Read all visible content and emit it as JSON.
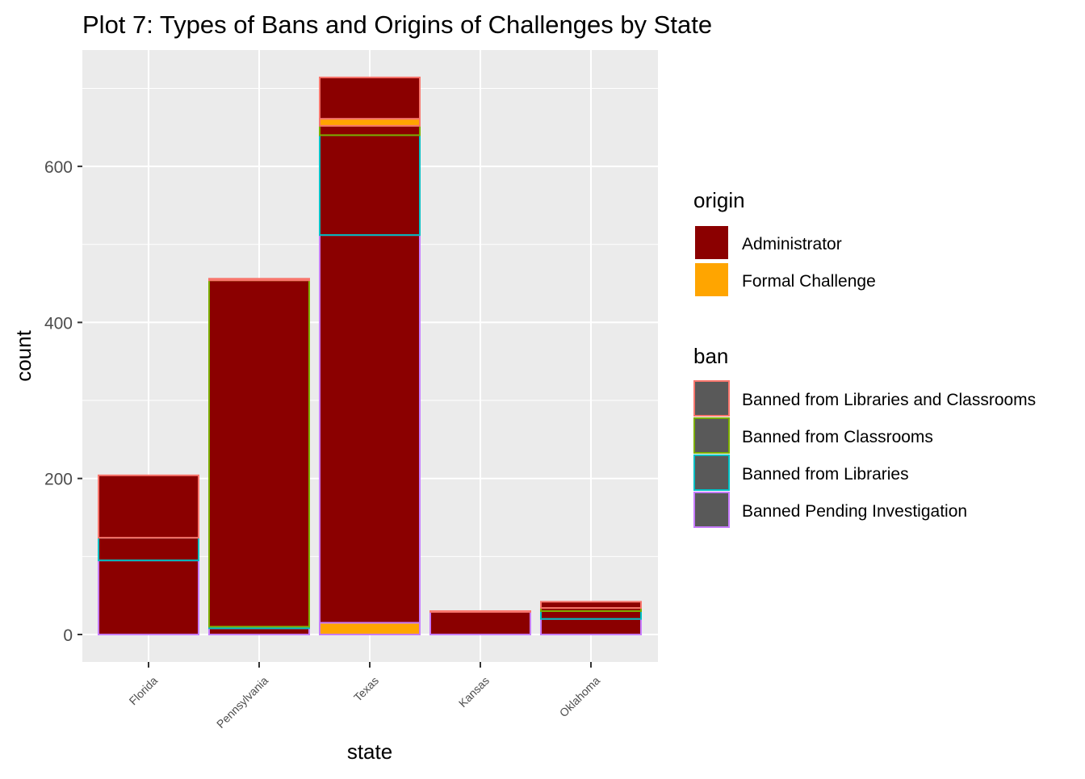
{
  "chart_data": {
    "type": "bar",
    "stacked": true,
    "title": "Plot 7: Types of Bans and Origins of Challenges by State",
    "xlabel": "state",
    "ylabel": "count",
    "ylim": [
      -30,
      740
    ],
    "yticks": [
      0,
      200,
      400,
      600
    ],
    "categories": [
      "Florida",
      "Pennsylvania",
      "Texas",
      "Kansas",
      "Oklahoma"
    ],
    "segments": {
      "Florida": [
        {
          "origin": "Administrator",
          "ban": "Banned Pending Investigation",
          "value": 95
        },
        {
          "origin": "Administrator",
          "ban": "Banned from Libraries",
          "value": 29
        },
        {
          "origin": "Administrator",
          "ban": "Banned from Libraries and Classrooms",
          "value": 80
        }
      ],
      "Pennsylvania": [
        {
          "origin": "Administrator",
          "ban": "Banned Pending Investigation",
          "value": 8
        },
        {
          "origin": "Administrator",
          "ban": "Banned from Libraries",
          "value": 2
        },
        {
          "origin": "Administrator",
          "ban": "Banned from Classrooms",
          "value": 444
        },
        {
          "origin": "Administrator",
          "ban": "Banned from Libraries and Classrooms",
          "value": 2
        }
      ],
      "Texas": [
        {
          "origin": "Formal Challenge",
          "ban": "Banned Pending Investigation",
          "value": 15
        },
        {
          "origin": "Administrator",
          "ban": "Banned Pending Investigation",
          "value": 497
        },
        {
          "origin": "Administrator",
          "ban": "Banned from Libraries",
          "value": 128
        },
        {
          "origin": "Administrator",
          "ban": "Banned from Classrooms",
          "value": 12
        },
        {
          "origin": "Formal Challenge",
          "ban": "Banned from Libraries and Classrooms",
          "value": 9
        },
        {
          "origin": "Administrator",
          "ban": "Banned from Libraries and Classrooms",
          "value": 53
        }
      ],
      "Kansas": [
        {
          "origin": "Administrator",
          "ban": "Banned Pending Investigation",
          "value": 29
        },
        {
          "origin": "Administrator",
          "ban": "Banned from Libraries and Classrooms",
          "value": 1
        }
      ],
      "Oklahoma": [
        {
          "origin": "Administrator",
          "ban": "Banned Pending Investigation",
          "value": 20
        },
        {
          "origin": "Administrator",
          "ban": "Banned from Libraries",
          "value": 10
        },
        {
          "origin": "Administrator",
          "ban": "Banned from Classrooms",
          "value": 4
        },
        {
          "origin": "Administrator",
          "ban": "Banned from Libraries and Classrooms",
          "value": 8
        }
      ]
    },
    "legend_origin": {
      "title": "origin",
      "items": [
        {
          "label": "Administrator",
          "color": "#8B0000"
        },
        {
          "label": "Formal Challenge",
          "color": "#FFA500"
        }
      ]
    },
    "legend_ban": {
      "title": "ban",
      "items": [
        {
          "label": "Banned from Libraries and Classrooms",
          "color": "#F8766D"
        },
        {
          "label": "Banned from Classrooms",
          "color": "#7CAE00"
        },
        {
          "label": "Banned from Libraries",
          "color": "#00BFC4"
        },
        {
          "label": "Banned Pending Investigation",
          "color": "#C77CFF"
        }
      ]
    },
    "legend_placement": "right",
    "grid": true
  }
}
